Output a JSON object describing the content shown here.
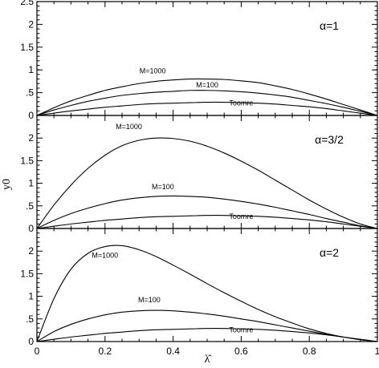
{
  "chart_data": [
    {
      "type": "line",
      "panel_label": "α=1",
      "ylim": [
        0,
        2.5
      ],
      "xlim": [
        0,
        1
      ],
      "x": [
        0,
        0.05,
        0.1,
        0.15,
        0.2,
        0.25,
        0.3,
        0.35,
        0.4,
        0.45,
        0.5,
        0.55,
        0.6,
        0.65,
        0.7,
        0.75,
        0.8,
        0.85,
        0.9,
        0.95,
        1.0
      ],
      "series": [
        {
          "name": "M=1000",
          "values": [
            0,
            0.17,
            0.32,
            0.44,
            0.55,
            0.63,
            0.7,
            0.75,
            0.78,
            0.8,
            0.8,
            0.79,
            0.76,
            0.72,
            0.65,
            0.57,
            0.47,
            0.36,
            0.24,
            0.12,
            0
          ]
        },
        {
          "name": "M=100",
          "values": [
            0,
            0.12,
            0.22,
            0.31,
            0.38,
            0.44,
            0.48,
            0.51,
            0.53,
            0.55,
            0.55,
            0.54,
            0.52,
            0.49,
            0.45,
            0.4,
            0.33,
            0.26,
            0.18,
            0.09,
            0
          ]
        },
        {
          "name": "Toomre",
          "values": [
            0,
            0.05,
            0.1,
            0.14,
            0.18,
            0.21,
            0.24,
            0.26,
            0.27,
            0.28,
            0.29,
            0.29,
            0.28,
            0.27,
            0.25,
            0.22,
            0.19,
            0.15,
            0.1,
            0.05,
            0
          ]
        }
      ],
      "annotations": [
        {
          "text": "M=1000",
          "x": 0.34,
          "y": 0.92
        },
        {
          "text": "M=100",
          "x": 0.5,
          "y": 0.62
        },
        {
          "text": "Toomre",
          "x": 0.6,
          "y": 0.22
        }
      ]
    },
    {
      "type": "line",
      "panel_label": "α=3/2",
      "ylim": [
        0,
        2.5
      ],
      "xlim": [
        0,
        1
      ],
      "x": [
        0,
        0.05,
        0.1,
        0.15,
        0.2,
        0.25,
        0.3,
        0.35,
        0.4,
        0.45,
        0.5,
        0.55,
        0.6,
        0.65,
        0.7,
        0.75,
        0.8,
        0.85,
        0.9,
        0.95,
        1.0
      ],
      "series": [
        {
          "name": "M=1000",
          "values": [
            0,
            0.52,
            0.96,
            1.33,
            1.62,
            1.83,
            1.95,
            2.0,
            1.99,
            1.93,
            1.82,
            1.67,
            1.49,
            1.29,
            1.07,
            0.85,
            0.63,
            0.43,
            0.25,
            0.1,
            0
          ]
        },
        {
          "name": "M=100",
          "values": [
            0,
            0.18,
            0.33,
            0.45,
            0.55,
            0.63,
            0.68,
            0.71,
            0.72,
            0.71,
            0.69,
            0.65,
            0.6,
            0.54,
            0.47,
            0.39,
            0.31,
            0.22,
            0.14,
            0.06,
            0
          ]
        },
        {
          "name": "Toomre",
          "values": [
            0,
            0.05,
            0.1,
            0.14,
            0.18,
            0.21,
            0.24,
            0.26,
            0.27,
            0.28,
            0.29,
            0.29,
            0.28,
            0.27,
            0.25,
            0.22,
            0.19,
            0.15,
            0.1,
            0.05,
            0
          ]
        }
      ],
      "annotations": [
        {
          "text": "M=1000",
          "x": 0.27,
          "y": 2.2
        },
        {
          "text": "M=100",
          "x": 0.37,
          "y": 0.87
        },
        {
          "text": "Toomre",
          "x": 0.6,
          "y": 0.21
        }
      ]
    },
    {
      "type": "line",
      "panel_label": "α=2",
      "ylim": [
        0,
        2.5
      ],
      "xlim": [
        0,
        1
      ],
      "x": [
        0,
        0.05,
        0.1,
        0.15,
        0.2,
        0.25,
        0.3,
        0.35,
        0.4,
        0.45,
        0.5,
        0.55,
        0.6,
        0.65,
        0.7,
        0.75,
        0.8,
        0.85,
        0.9,
        0.95,
        1.0
      ],
      "series": [
        {
          "name": "M=1000",
          "values": [
            0,
            0.95,
            1.6,
            1.95,
            2.1,
            2.12,
            2.03,
            1.88,
            1.69,
            1.49,
            1.28,
            1.08,
            0.89,
            0.71,
            0.55,
            0.41,
            0.28,
            0.18,
            0.1,
            0.04,
            0
          ]
        },
        {
          "name": "M=100",
          "values": [
            0,
            0.22,
            0.38,
            0.5,
            0.59,
            0.65,
            0.68,
            0.69,
            0.68,
            0.65,
            0.61,
            0.56,
            0.5,
            0.44,
            0.37,
            0.3,
            0.23,
            0.16,
            0.1,
            0.04,
            0
          ]
        },
        {
          "name": "Toomre",
          "values": [
            0,
            0.05,
            0.1,
            0.14,
            0.18,
            0.21,
            0.24,
            0.26,
            0.27,
            0.28,
            0.29,
            0.29,
            0.28,
            0.27,
            0.25,
            0.22,
            0.19,
            0.15,
            0.1,
            0.05,
            0
          ]
        }
      ],
      "annotations": [
        {
          "text": "M=1000",
          "x": 0.2,
          "y": 1.85
        },
        {
          "text": "M=100",
          "x": 0.33,
          "y": 0.87
        },
        {
          "text": "Toomre",
          "x": 0.6,
          "y": 0.2
        }
      ]
    }
  ],
  "axes": {
    "x_ticks": [
      "0",
      "0.2",
      "0.4",
      "0.6",
      "0.8",
      "1"
    ],
    "y_ticks": [
      "0",
      ".5",
      "1",
      "1.5",
      "2",
      "2.5"
    ],
    "xlabel": "λ̂",
    "ylabel": "y0"
  }
}
